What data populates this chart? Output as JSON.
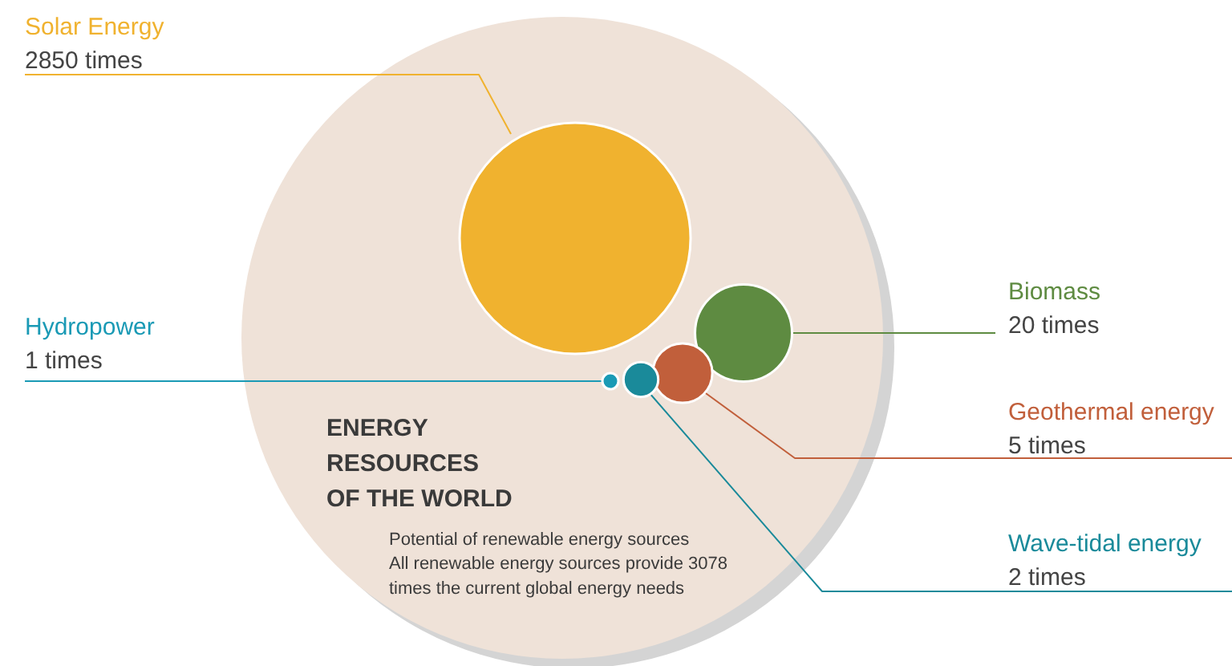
{
  "chart_data": {
    "type": "other",
    "title": "ENERGY\nRESOURCES\nOF THE WORLD",
    "subtitle": "Potential of renewable energy sources",
    "annotations": [
      "All renewable energy sources provide 3078\ntimes the current global energy needs"
    ],
    "categories": [
      "Solar Energy",
      "Biomass",
      "Geothermal energy",
      "Wave-tidal energy",
      "Hydropower"
    ],
    "values": [
      2850,
      20,
      5,
      2,
      1
    ],
    "value_labels": [
      "2850 times",
      "20 times",
      "5 times",
      "2 times",
      "1 times"
    ],
    "colors": [
      "#f0b22f",
      "#5e8b41",
      "#c15f3b",
      "#1a8a9a",
      "#1a9ab5"
    ]
  }
}
